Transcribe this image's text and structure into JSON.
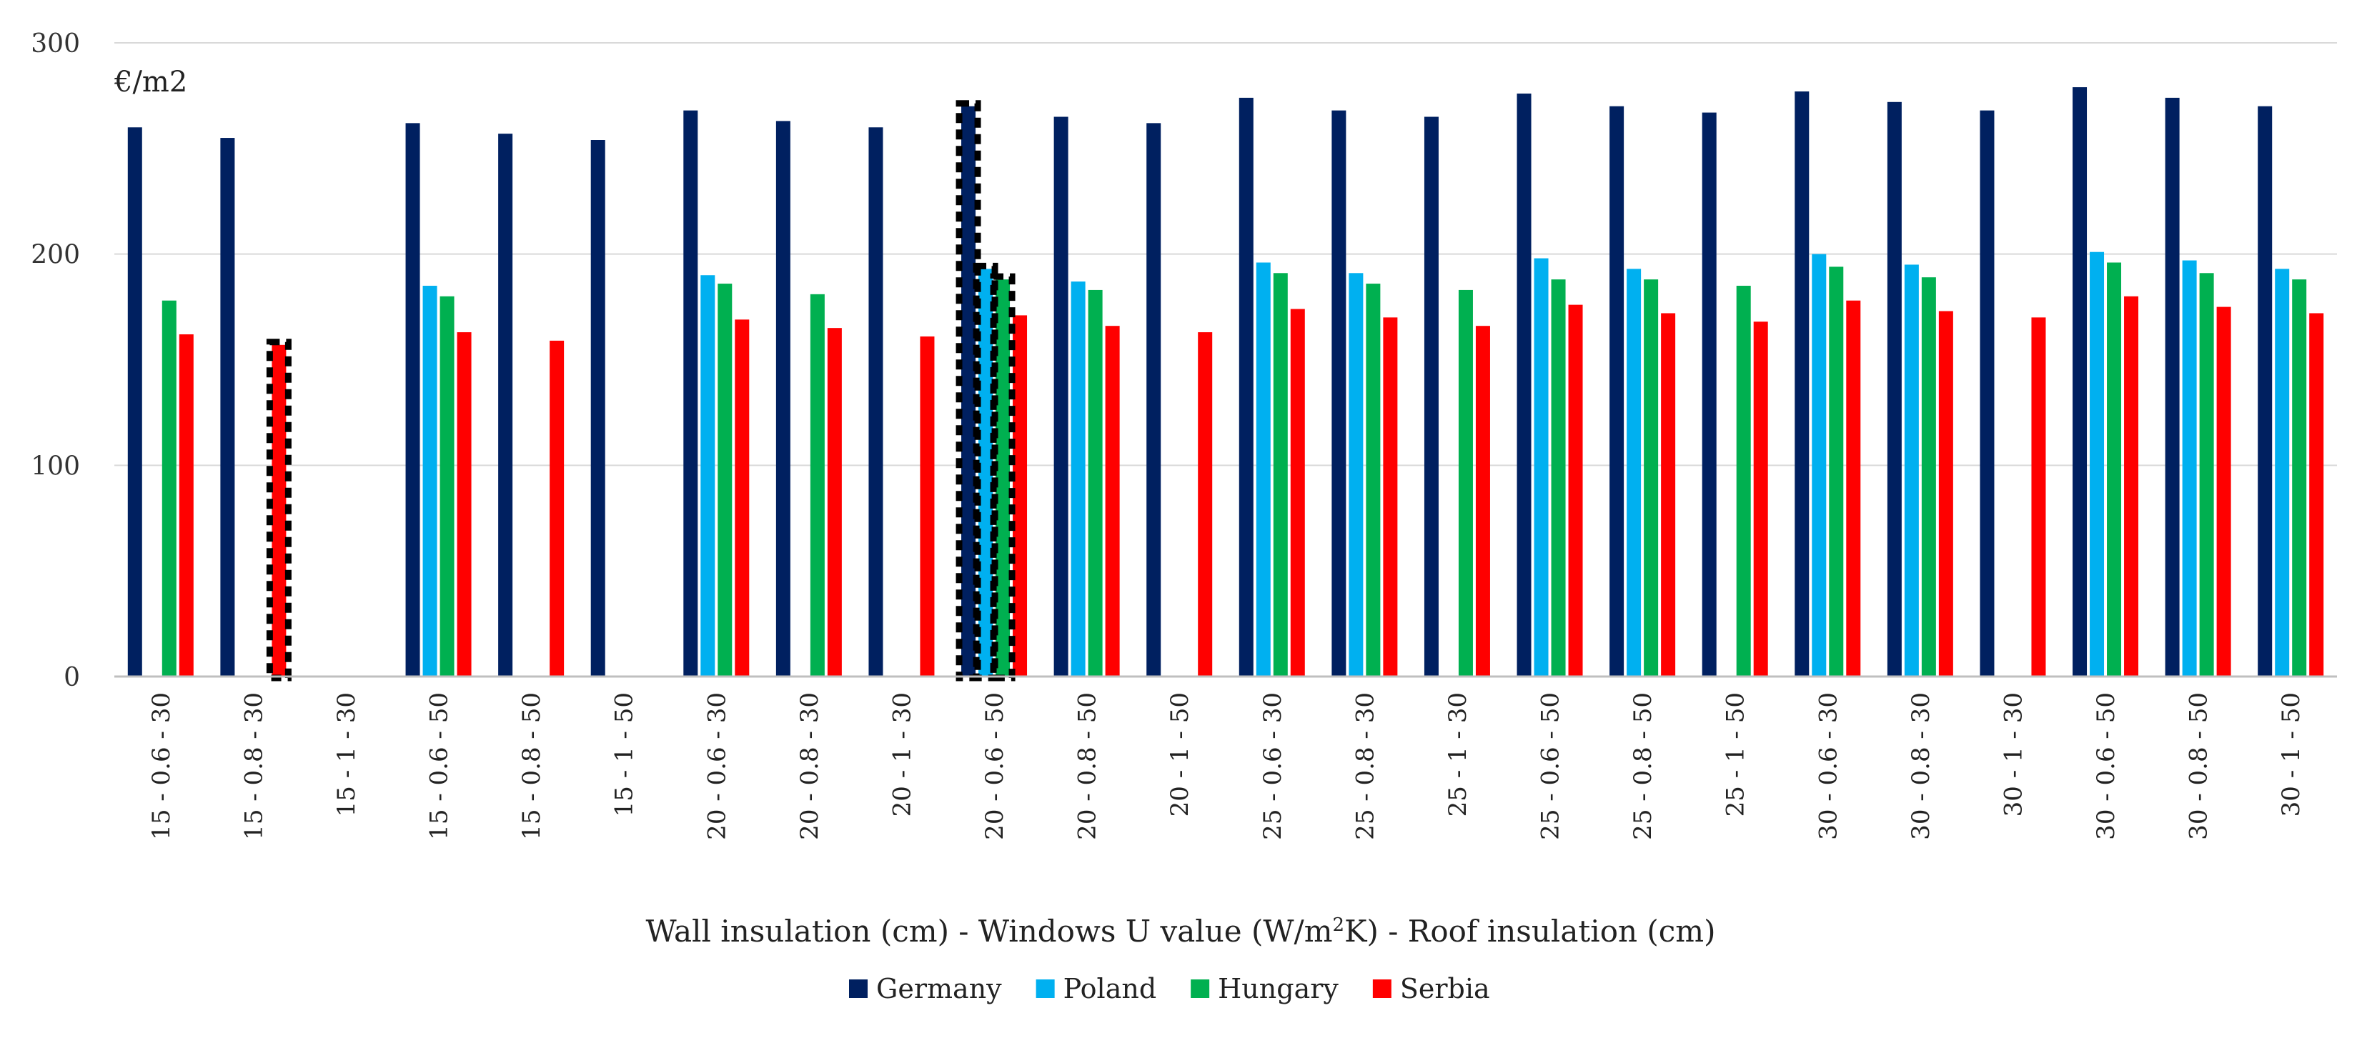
{
  "chart_data": {
    "type": "bar",
    "unit_label": "€/m2",
    "xlabel_parts": [
      "Wall insulation (cm) - Windows U value (W/m",
      "2",
      "K) - Roof insulation (cm)"
    ],
    "ylim": [
      0,
      300
    ],
    "yticks": [
      0,
      100,
      200,
      300
    ],
    "grid": true,
    "legend_placement": "bottom",
    "categories": [
      "15 - 0.6 - 30",
      "15 - 0.8 - 30",
      "15 - 1 - 30",
      "15 - 0.6 - 50",
      "15 - 0.8 - 50",
      "15 - 1 - 50",
      "20 - 0.6 - 30",
      "20 - 0.8 - 30",
      "20 - 1 - 30",
      "20 - 0.6 - 50",
      "20 - 0.8 - 50",
      "20 - 1 - 50",
      "25 - 0.6 - 30",
      "25 - 0.8 - 30",
      "25 - 1 - 30",
      "25 - 0.6 - 50",
      "25 - 0.8 - 50",
      "25 - 1 - 50",
      "30 - 0.6 - 30",
      "30 - 0.8 - 30",
      "30 - 1 - 30",
      "30 - 0.6 - 50",
      "30 - 0.8 - 50",
      "30 - 1 - 50"
    ],
    "series": [
      {
        "name": "Germany",
        "color": "#002060",
        "values": [
          260,
          255,
          null,
          262,
          257,
          254,
          268,
          263,
          260,
          270,
          265,
          262,
          274,
          268,
          265,
          276,
          270,
          267,
          277,
          272,
          268,
          279,
          274,
          270
        ]
      },
      {
        "name": "Poland",
        "color": "#00b0f0",
        "values": [
          null,
          null,
          null,
          185,
          null,
          null,
          190,
          null,
          null,
          193,
          187,
          null,
          196,
          191,
          null,
          198,
          193,
          null,
          200,
          195,
          null,
          201,
          197,
          193
        ]
      },
      {
        "name": "Hungary",
        "color": "#00b050",
        "values": [
          178,
          null,
          null,
          180,
          null,
          null,
          186,
          181,
          null,
          188,
          183,
          null,
          191,
          186,
          183,
          188,
          188,
          185,
          194,
          189,
          null,
          196,
          191,
          188
        ]
      },
      {
        "name": "Serbia",
        "color": "#ff0000",
        "values": [
          162,
          157,
          null,
          163,
          159,
          null,
          169,
          165,
          161,
          171,
          166,
          163,
          174,
          170,
          166,
          176,
          172,
          168,
          178,
          173,
          170,
          180,
          175,
          172
        ]
      }
    ],
    "highlighted": [
      {
        "category_index": 1,
        "series_index": 3
      },
      {
        "category_index": 9,
        "series_index": 0
      },
      {
        "category_index": 9,
        "series_index": 1
      },
      {
        "category_index": 9,
        "series_index": 2
      }
    ]
  }
}
